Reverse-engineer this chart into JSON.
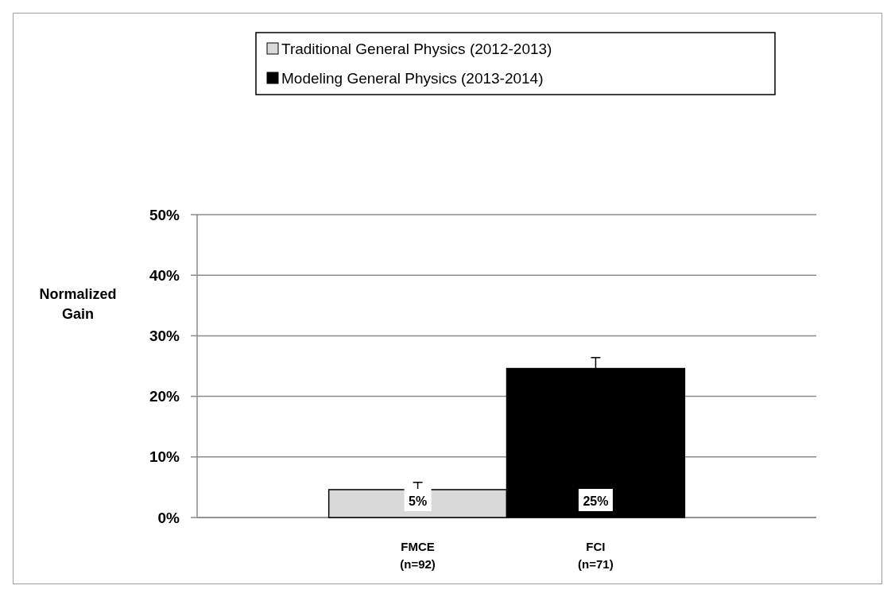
{
  "chart_data": {
    "type": "bar",
    "ylabel": "Normalized Gain",
    "categories": [
      "FMCE (n=92)",
      "FCI (n=71)"
    ],
    "series": [
      {
        "name": "Traditional General Physics (2012-2013)",
        "color": "#d9d9d9",
        "values": [
          4.6,
          null
        ],
        "errors": [
          [
            4.6,
            5.8
          ],
          null
        ],
        "value_labels": [
          "5%",
          null
        ]
      },
      {
        "name": "Modeling General Physics (2013-2014)",
        "color": "#000000",
        "values": [
          null,
          24.6
        ],
        "errors": [
          null,
          [
            24.6,
            26.4
          ]
        ],
        "value_labels": [
          null,
          "25%"
        ]
      }
    ],
    "ylim": [
      0,
      50
    ],
    "yticks": [
      {
        "value": 0,
        "label": "0%"
      },
      {
        "value": 10,
        "label": "10%"
      },
      {
        "value": 20,
        "label": "20%"
      },
      {
        "value": 30,
        "label": "30%"
      },
      {
        "value": 40,
        "label": "40%"
      },
      {
        "value": 50,
        "label": "50%"
      }
    ],
    "grid": "y",
    "legend": "top"
  }
}
